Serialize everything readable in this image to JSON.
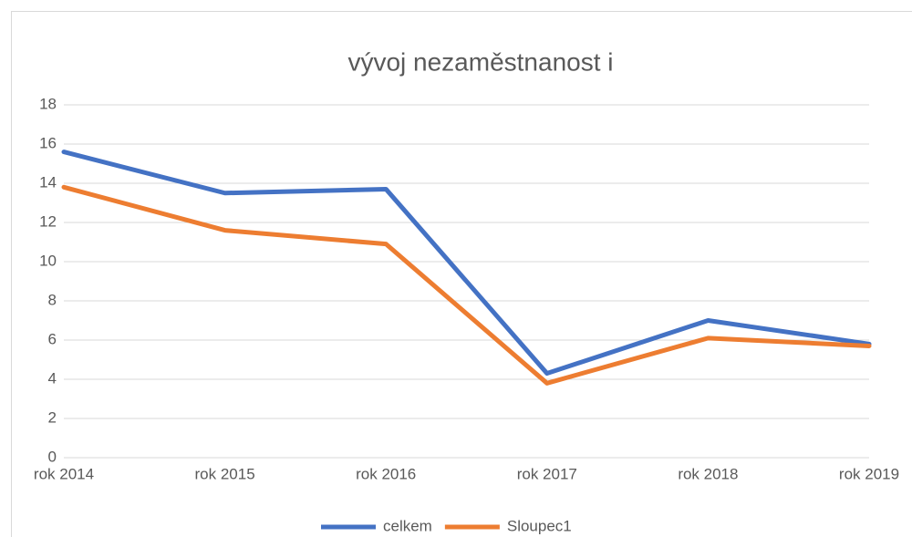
{
  "chart_data": {
    "type": "line",
    "title": "vývoj nezaměstnanost i",
    "categories": [
      "rok 2014",
      "rok 2015",
      "rok 2016",
      "rok 2017",
      "rok 2018",
      "rok 2019"
    ],
    "series": [
      {
        "name": "celkem",
        "color": "#4472c4",
        "values": [
          15.6,
          13.5,
          13.7,
          4.3,
          7.0,
          5.8
        ]
      },
      {
        "name": "Sloupec1",
        "color": "#ed7d31",
        "values": [
          13.8,
          11.6,
          10.9,
          3.8,
          6.1,
          5.7
        ]
      }
    ],
    "ylim": [
      0,
      18
    ],
    "yticks": [
      0,
      2,
      4,
      6,
      8,
      10,
      12,
      14,
      16,
      18
    ],
    "grid": true,
    "legend": "bottom"
  }
}
